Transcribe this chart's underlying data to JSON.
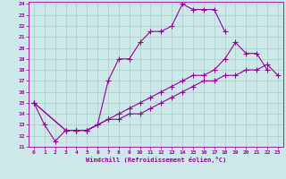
{
  "xlabel": "Windchill (Refroidissement éolien,°C)",
  "background_color": "#cce8e8",
  "grid_color": "#aacccc",
  "line_color": "#990099",
  "xlim": [
    -0.5,
    23.5
  ],
  "ylim": [
    11,
    24.2
  ],
  "yticks": [
    11,
    12,
    13,
    14,
    15,
    16,
    17,
    18,
    19,
    20,
    21,
    22,
    23,
    24
  ],
  "xticks": [
    0,
    1,
    2,
    3,
    4,
    5,
    6,
    7,
    8,
    9,
    10,
    11,
    12,
    13,
    14,
    15,
    16,
    17,
    18,
    19,
    20,
    21,
    22,
    23
  ],
  "line1_x": [
    0,
    1,
    2,
    3,
    4,
    5,
    6,
    7,
    8,
    9,
    10,
    11,
    12,
    13,
    14,
    15,
    16,
    17,
    18
  ],
  "line1_y": [
    15,
    13,
    11.5,
    12.5,
    12.5,
    12.5,
    13,
    17,
    19,
    19,
    20.5,
    21.5,
    21.5,
    22,
    24,
    23.5,
    23.5,
    23.5,
    21.5
  ],
  "line2_x": [
    0,
    3,
    4,
    5,
    6,
    7,
    8,
    9,
    10,
    11,
    12,
    13,
    14,
    15,
    16,
    17,
    18,
    19,
    20,
    21,
    22
  ],
  "line2_y": [
    15,
    12.5,
    12.5,
    12.5,
    13,
    13.5,
    14,
    14.5,
    15,
    15.5,
    16,
    16.5,
    17,
    17.5,
    17.5,
    18,
    19,
    20.5,
    19.5,
    19.5,
    18
  ],
  "line3_x": [
    0,
    3,
    4,
    5,
    6,
    7,
    8,
    9,
    10,
    11,
    12,
    13,
    14,
    15,
    16,
    17,
    18,
    19,
    20,
    21,
    22,
    23
  ],
  "line3_y": [
    15,
    12.5,
    12.5,
    12.5,
    13,
    13.5,
    13.5,
    14,
    14,
    14.5,
    15,
    15.5,
    16,
    16.5,
    17,
    17,
    17.5,
    17.5,
    18,
    18,
    18.5,
    17.5
  ],
  "marker_size": 4,
  "line_width": 0.8
}
